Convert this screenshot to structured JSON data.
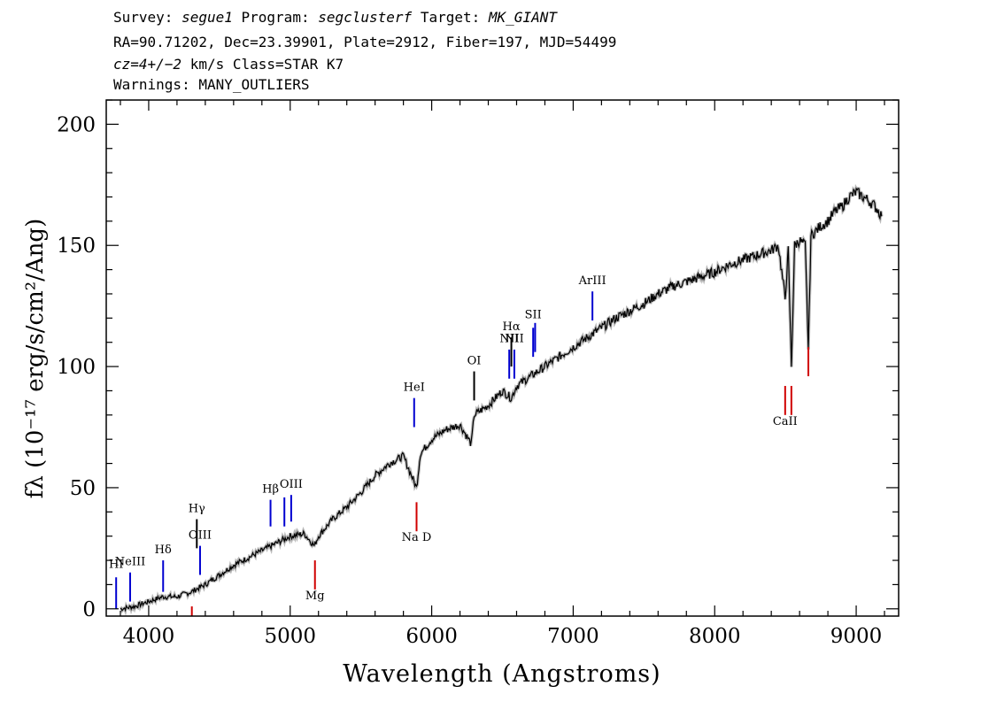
{
  "header": {
    "line1": {
      "survey_label": "Survey:",
      "survey": "segue1",
      "program_label": "Program:",
      "program": "segclusterf",
      "target_label": "Target:",
      "target": "MK_GIANT"
    },
    "line2": "RA=90.71202, Dec=23.39901, Plate=2912, Fiber=197, MJD=54499",
    "line3": {
      "cz": "cz=4+/−2",
      "rest": "km/s Class=STAR K7"
    },
    "line4": "Warnings: MANY_OUTLIERS"
  },
  "chart_data": {
    "type": "line",
    "xlabel": "Wavelength (Angstroms)",
    "ylabel": "fλ (10⁻¹⁷ erg/s/cm²/Ang)",
    "xlim": [
      3700,
      9300
    ],
    "ylim": [
      -3,
      210
    ],
    "x_ticks": [
      4000,
      5000,
      6000,
      7000,
      8000,
      9000
    ],
    "y_ticks": [
      0,
      50,
      100,
      150,
      200
    ],
    "x_minor_step": 200,
    "y_minor_step": 10,
    "grid": false,
    "series": [
      {
        "color": "#000000",
        "points": [
          [
            3800,
            0
          ],
          [
            3900,
            1
          ],
          [
            4000,
            3
          ],
          [
            4100,
            5
          ],
          [
            4200,
            5
          ],
          [
            4300,
            7
          ],
          [
            4400,
            10
          ],
          [
            4500,
            14
          ],
          [
            4600,
            18
          ],
          [
            4700,
            21
          ],
          [
            4800,
            24
          ],
          [
            4900,
            27
          ],
          [
            5000,
            30
          ],
          [
            5100,
            31
          ],
          [
            5170,
            26
          ],
          [
            5200,
            30
          ],
          [
            5300,
            37
          ],
          [
            5400,
            42
          ],
          [
            5500,
            48
          ],
          [
            5600,
            55
          ],
          [
            5700,
            60
          ],
          [
            5800,
            63
          ],
          [
            5850,
            56
          ],
          [
            5893,
            50
          ],
          [
            5920,
            64
          ],
          [
            6000,
            70
          ],
          [
            6100,
            74
          ],
          [
            6200,
            76
          ],
          [
            6280,
            68
          ],
          [
            6300,
            80
          ],
          [
            6400,
            84
          ],
          [
            6500,
            90
          ],
          [
            6563,
            87
          ],
          [
            6600,
            92
          ],
          [
            6700,
            96
          ],
          [
            6800,
            100
          ],
          [
            6900,
            104
          ],
          [
            7000,
            108
          ],
          [
            7100,
            112
          ],
          [
            7200,
            116
          ],
          [
            7300,
            120
          ],
          [
            7400,
            123
          ],
          [
            7500,
            126
          ],
          [
            7600,
            130
          ],
          [
            7700,
            133
          ],
          [
            7800,
            135
          ],
          [
            7900,
            137
          ],
          [
            8000,
            139
          ],
          [
            8100,
            142
          ],
          [
            8200,
            144
          ],
          [
            8300,
            146
          ],
          [
            8400,
            148
          ],
          [
            8450,
            150
          ],
          [
            8498,
            128
          ],
          [
            8520,
            148
          ],
          [
            8542,
            100
          ],
          [
            8565,
            150
          ],
          [
            8600,
            152
          ],
          [
            8640,
            150
          ],
          [
            8662,
            107
          ],
          [
            8680,
            154
          ],
          [
            8750,
            158
          ],
          [
            8800,
            160
          ],
          [
            8850,
            164
          ],
          [
            8900,
            166
          ],
          [
            8950,
            170
          ],
          [
            9000,
            172
          ],
          [
            9050,
            170
          ],
          [
            9100,
            168
          ],
          [
            9150,
            165
          ],
          [
            9180,
            162
          ]
        ]
      }
    ],
    "annotations": {
      "emission": [
        {
          "label": "HI",
          "x": 3770,
          "y_lo": 0,
          "y_hi": 13,
          "label_y": 17,
          "color": "#0000d0"
        },
        {
          "label": "NeIII",
          "x": 3869,
          "y_lo": 3,
          "y_hi": 15,
          "label_y": 18,
          "color": "#0000d0"
        },
        {
          "label": "Hδ",
          "x": 4102,
          "y_lo": 7,
          "y_hi": 20,
          "label_y": 23,
          "color": "#0000d0"
        },
        {
          "label": "Hγ",
          "x": 4340,
          "y_lo": 25,
          "y_hi": 37,
          "label_y": 40,
          "color": "#000000"
        },
        {
          "label": "OIII",
          "x": 4363,
          "y_lo": 14,
          "y_hi": 26,
          "label_y": 29,
          "color": "#0000d0"
        },
        {
          "label": "Hβ",
          "x": 4861,
          "y_lo": 34,
          "y_hi": 45,
          "label_y": 48,
          "color": "#0000d0"
        },
        {
          "label": "",
          "x": 4959,
          "y_lo": 34,
          "y_hi": 46,
          "label_y": 0,
          "color": "#0000d0"
        },
        {
          "label": "OIII",
          "x": 5007,
          "y_lo": 36,
          "y_hi": 47,
          "label_y": 50,
          "color": "#0000d0"
        },
        {
          "label": "HeI",
          "x": 5876,
          "y_lo": 75,
          "y_hi": 87,
          "label_y": 90,
          "color": "#0000d0"
        },
        {
          "label": "OI",
          "x": 6300,
          "y_lo": 86,
          "y_hi": 98,
          "label_y": 101,
          "color": "#000000"
        },
        {
          "label": "NII",
          "x": 6548,
          "y_lo": 95,
          "y_hi": 107,
          "label_y": 110,
          "color": "#0000d0"
        },
        {
          "label": "Hα",
          "x": 6563,
          "y_lo": 100,
          "y_hi": 112,
          "label_y": 115,
          "color": "#000000"
        },
        {
          "label": "NII",
          "x": 6584,
          "y_lo": 95,
          "y_hi": 107,
          "label_y": 110,
          "color": "#0000d0"
        },
        {
          "label": "SII",
          "x": 6717,
          "y_lo": 104,
          "y_hi": 116,
          "label_y": 120,
          "color": "#0000d0"
        },
        {
          "label": "",
          "x": 6731,
          "y_lo": 106,
          "y_hi": 118,
          "label_y": 0,
          "color": "#0000d0"
        },
        {
          "label": "ArIII",
          "x": 7136,
          "y_lo": 119,
          "y_hi": 131,
          "label_y": 134,
          "color": "#0000d0"
        }
      ],
      "absorption": [
        {
          "label": "Mg",
          "x": 5175,
          "y_lo": 8,
          "y_hi": 20,
          "label_y": 4,
          "color": "#d00000"
        },
        {
          "label": "",
          "x": 4305,
          "y_lo": -3,
          "y_hi": 1,
          "label_y": 0,
          "color": "#d00000"
        },
        {
          "label": "Na D",
          "x": 5893,
          "y_lo": 32,
          "y_hi": 44,
          "label_y": 28,
          "color": "#d00000"
        },
        {
          "label": "CaII",
          "x": 8498,
          "y_lo": 80,
          "y_hi": 92,
          "label_y": 76,
          "color": "#d00000"
        },
        {
          "label": "",
          "x": 8542,
          "y_lo": 80,
          "y_hi": 92,
          "label_y": 0,
          "color": "#d00000"
        },
        {
          "label": "",
          "x": 8662,
          "y_lo": 96,
          "y_hi": 108,
          "label_y": 0,
          "color": "#d00000"
        }
      ]
    }
  }
}
